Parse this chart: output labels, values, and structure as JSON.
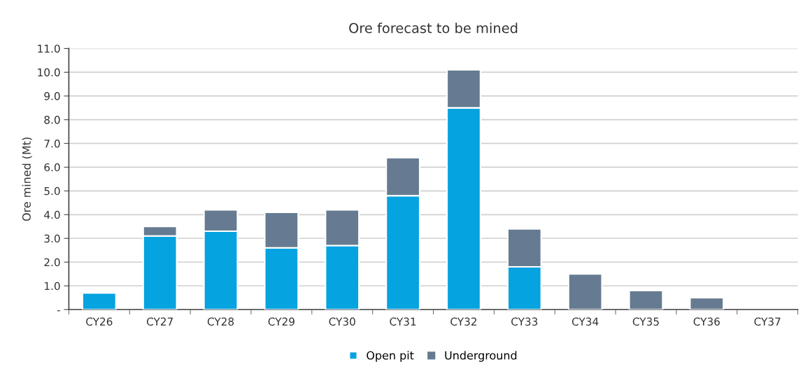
{
  "chart_data": {
    "type": "bar",
    "title": "Ore forecast to be mined",
    "ylabel": "Ore mined (Mt)",
    "stacked": true,
    "categories": [
      "CY26",
      "CY27",
      "CY28",
      "CY29",
      "CY30",
      "CY31",
      "CY32",
      "CY33",
      "CY34",
      "CY35",
      "CY36",
      "CY37"
    ],
    "series": [
      {
        "name": "Open pit",
        "color": "#05a3e0",
        "values": [
          0.7,
          3.1,
          3.3,
          2.6,
          2.7,
          4.8,
          8.5,
          1.8,
          0,
          0,
          0,
          0
        ]
      },
      {
        "name": "Underground",
        "color": "#667b91",
        "values": [
          0,
          0.4,
          0.9,
          1.5,
          1.5,
          1.6,
          1.6,
          1.6,
          1.5,
          0.8,
          0.5,
          0
        ]
      }
    ],
    "ylim": [
      0,
      11
    ],
    "yticks": [
      {
        "value": 0,
        "label": "-"
      },
      {
        "value": 1,
        "label": "1.0"
      },
      {
        "value": 2,
        "label": "2.0"
      },
      {
        "value": 3,
        "label": "3.0"
      },
      {
        "value": 4,
        "label": "4.0"
      },
      {
        "value": 5,
        "label": "5.0"
      },
      {
        "value": 6,
        "label": "6.0"
      },
      {
        "value": 7,
        "label": "7.0"
      },
      {
        "value": 8,
        "label": "8.0"
      },
      {
        "value": 9,
        "label": "9.0"
      },
      {
        "value": 10,
        "label": "10.0"
      },
      {
        "value": 11,
        "label": "11.0"
      }
    ],
    "grid": "y",
    "legend": "bottom"
  }
}
